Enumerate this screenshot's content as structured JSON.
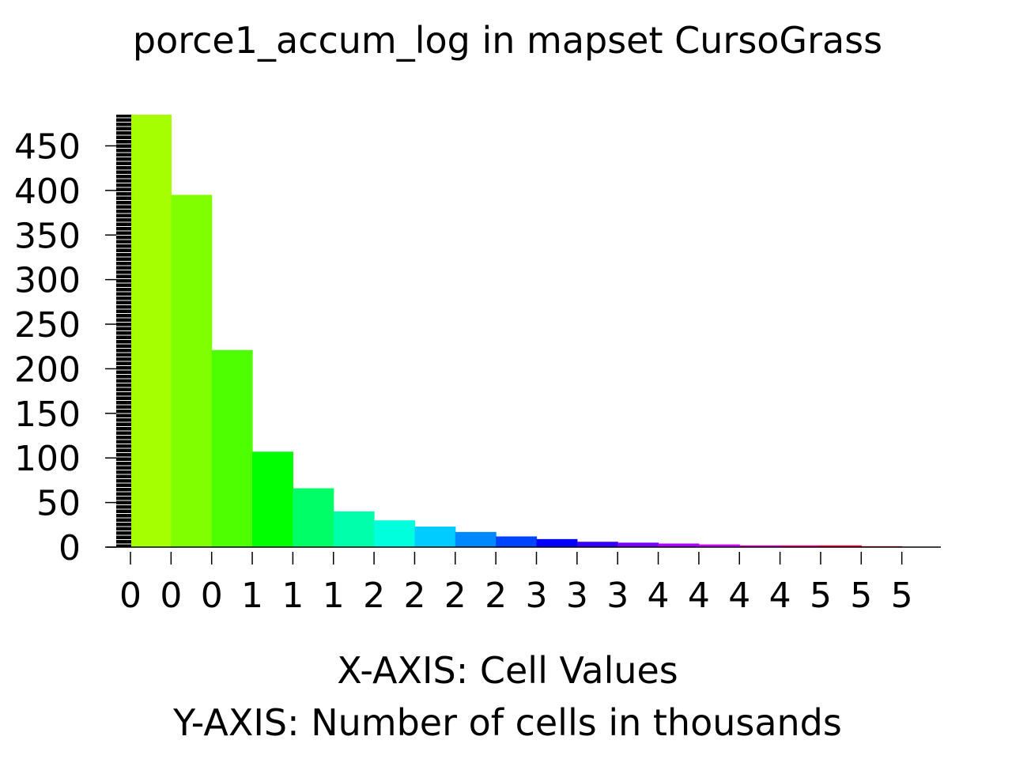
{
  "chart_data": {
    "type": "bar",
    "title": "porce1_accum_log in mapset CursoGrass",
    "xlabel": "X-AXIS: Cell Values",
    "ylabel": "Y-AXIS: Number of cells in thousands",
    "x_tick_labels": [
      "0",
      "0",
      "0",
      "1",
      "1",
      "1",
      "2",
      "2",
      "2",
      "2",
      "3",
      "3",
      "3",
      "4",
      "4",
      "4",
      "4",
      "5",
      "5",
      "5"
    ],
    "y_ticks": [
      0,
      50,
      100,
      150,
      200,
      250,
      300,
      350,
      400,
      450
    ],
    "ylim": [
      0,
      485
    ],
    "values": [
      485,
      395,
      221,
      107,
      66,
      40,
      30,
      23,
      17,
      12,
      9,
      6,
      5,
      4,
      3,
      2,
      2,
      2,
      1
    ],
    "bar_colors": [
      "#a6ff00",
      "#80ff00",
      "#4dff00",
      "#00ff00",
      "#00ff66",
      "#00ffaa",
      "#00ffdd",
      "#00ccff",
      "#0088ff",
      "#0044ff",
      "#0000ff",
      "#3300ff",
      "#7700ff",
      "#aa00ff",
      "#cc00ff",
      "#dd00cc",
      "#ee0088",
      "#ff0044",
      "#ff0000"
    ],
    "grid": false,
    "legend": "none"
  }
}
